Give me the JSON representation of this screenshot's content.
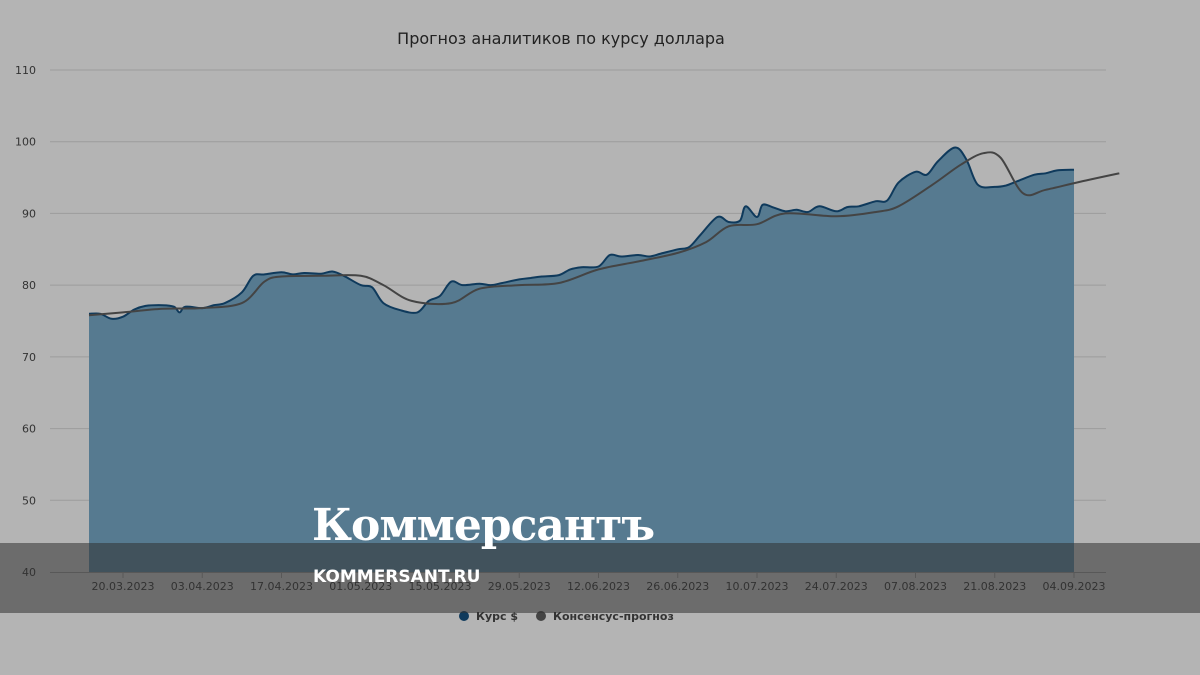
{
  "chart_data": {
    "type": "area",
    "title": "Прогноз аналитиков по курсу доллара",
    "ylim": [
      40,
      110
    ],
    "yticks": [
      40,
      50,
      60,
      70,
      80,
      90,
      100,
      110
    ],
    "grid": true,
    "legend_placement": "bottom-center",
    "xticks": [
      {
        "date": "2023-03-20",
        "label": "20.03.2023"
      },
      {
        "date": "2023-04-03",
        "label": "03.04.2023"
      },
      {
        "date": "2023-04-17",
        "label": "17.04.2023"
      },
      {
        "date": "2023-05-01",
        "label": "01.05.2023"
      },
      {
        "date": "2023-05-15",
        "label": "15.05.2023"
      },
      {
        "date": "2023-05-29",
        "label": "29.05.2023"
      },
      {
        "date": "2023-06-12",
        "label": "12.06.2023"
      },
      {
        "date": "2023-06-26",
        "label": "26.06.2023"
      },
      {
        "date": "2023-07-10",
        "label": "10.07.2023"
      },
      {
        "date": "2023-07-24",
        "label": "24.07.2023"
      },
      {
        "date": "2023-08-07",
        "label": "07.08.2023"
      },
      {
        "date": "2023-08-21",
        "label": "21.08.2023"
      },
      {
        "date": "2023-09-04",
        "label": "04.09.2023"
      }
    ],
    "series": [
      {
        "name": "Курс $",
        "type": "area",
        "color": "#567a90",
        "line_color": "#0f3a5c",
        "points": [
          [
            "2023-03-14",
            76.0
          ],
          [
            "2023-03-16",
            76.0
          ],
          [
            "2023-03-18",
            75.3
          ],
          [
            "2023-03-20",
            75.6
          ],
          [
            "2023-03-22",
            76.6
          ],
          [
            "2023-03-24",
            77.1
          ],
          [
            "2023-03-27",
            77.2
          ],
          [
            "2023-03-29",
            77.0
          ],
          [
            "2023-03-30",
            76.2
          ],
          [
            "2023-03-31",
            77.0
          ],
          [
            "2023-04-03",
            76.8
          ],
          [
            "2023-04-05",
            77.2
          ],
          [
            "2023-04-07",
            77.5
          ],
          [
            "2023-04-10",
            79.0
          ],
          [
            "2023-04-12",
            81.3
          ],
          [
            "2023-04-14",
            81.5
          ],
          [
            "2023-04-17",
            81.8
          ],
          [
            "2023-04-19",
            81.5
          ],
          [
            "2023-04-21",
            81.7
          ],
          [
            "2023-04-24",
            81.6
          ],
          [
            "2023-04-26",
            81.9
          ],
          [
            "2023-04-28",
            81.3
          ],
          [
            "2023-05-01",
            80.0
          ],
          [
            "2023-05-03",
            79.7
          ],
          [
            "2023-05-05",
            77.5
          ],
          [
            "2023-05-08",
            76.5
          ],
          [
            "2023-05-11",
            76.2
          ],
          [
            "2023-05-13",
            77.8
          ],
          [
            "2023-05-15",
            78.5
          ],
          [
            "2023-05-17",
            80.5
          ],
          [
            "2023-05-19",
            80.0
          ],
          [
            "2023-05-22",
            80.2
          ],
          [
            "2023-05-24",
            80.0
          ],
          [
            "2023-05-26",
            80.3
          ],
          [
            "2023-05-29",
            80.8
          ],
          [
            "2023-05-31",
            81.0
          ],
          [
            "2023-06-02",
            81.2
          ],
          [
            "2023-06-05",
            81.4
          ],
          [
            "2023-06-07",
            82.2
          ],
          [
            "2023-06-09",
            82.5
          ],
          [
            "2023-06-12",
            82.6
          ],
          [
            "2023-06-14",
            84.2
          ],
          [
            "2023-06-16",
            84.0
          ],
          [
            "2023-06-19",
            84.2
          ],
          [
            "2023-06-21",
            84.0
          ],
          [
            "2023-06-23",
            84.4
          ],
          [
            "2023-06-26",
            85.0
          ],
          [
            "2023-06-28",
            85.3
          ],
          [
            "2023-06-30",
            87.0
          ],
          [
            "2023-07-03",
            89.5
          ],
          [
            "2023-07-05",
            88.8
          ],
          [
            "2023-07-07",
            89.0
          ],
          [
            "2023-07-08",
            91.0
          ],
          [
            "2023-07-10",
            89.5
          ],
          [
            "2023-07-11",
            91.2
          ],
          [
            "2023-07-13",
            90.8
          ],
          [
            "2023-07-15",
            90.3
          ],
          [
            "2023-07-17",
            90.5
          ],
          [
            "2023-07-19",
            90.2
          ],
          [
            "2023-07-21",
            91.0
          ],
          [
            "2023-07-24",
            90.3
          ],
          [
            "2023-07-26",
            90.9
          ],
          [
            "2023-07-28",
            91.0
          ],
          [
            "2023-07-31",
            91.7
          ],
          [
            "2023-08-02",
            91.8
          ],
          [
            "2023-08-04",
            94.3
          ],
          [
            "2023-08-07",
            95.8
          ],
          [
            "2023-08-09",
            95.4
          ],
          [
            "2023-08-11",
            97.3
          ],
          [
            "2023-08-14",
            99.2
          ],
          [
            "2023-08-16",
            97.5
          ],
          [
            "2023-08-18",
            94.0
          ],
          [
            "2023-08-21",
            93.7
          ],
          [
            "2023-08-23",
            93.9
          ],
          [
            "2023-08-25",
            94.5
          ],
          [
            "2023-08-28",
            95.4
          ],
          [
            "2023-08-30",
            95.6
          ],
          [
            "2023-09-01",
            96.0
          ],
          [
            "2023-09-04",
            96.1
          ]
        ]
      },
      {
        "name": "Консенсус-прогноз",
        "type": "line",
        "color": "#444444",
        "points": [
          [
            "2023-03-14",
            75.8
          ],
          [
            "2023-03-20",
            76.2
          ],
          [
            "2023-03-27",
            76.7
          ],
          [
            "2023-04-03",
            76.8
          ],
          [
            "2023-04-10",
            77.5
          ],
          [
            "2023-04-14",
            80.5
          ],
          [
            "2023-04-17",
            81.2
          ],
          [
            "2023-04-24",
            81.3
          ],
          [
            "2023-05-01",
            81.3
          ],
          [
            "2023-05-05",
            80.0
          ],
          [
            "2023-05-10",
            77.8
          ],
          [
            "2023-05-17",
            77.5
          ],
          [
            "2023-05-22",
            79.5
          ],
          [
            "2023-05-29",
            80.0
          ],
          [
            "2023-06-05",
            80.3
          ],
          [
            "2023-06-12",
            82.2
          ],
          [
            "2023-06-19",
            83.3
          ],
          [
            "2023-06-26",
            84.5
          ],
          [
            "2023-07-01",
            86.0
          ],
          [
            "2023-07-05",
            88.2
          ],
          [
            "2023-07-10",
            88.5
          ],
          [
            "2023-07-15",
            90.0
          ],
          [
            "2023-07-24",
            89.6
          ],
          [
            "2023-07-31",
            90.2
          ],
          [
            "2023-08-04",
            91.0
          ],
          [
            "2023-08-10",
            94.0
          ],
          [
            "2023-08-15",
            96.8
          ],
          [
            "2023-08-19",
            98.4
          ],
          [
            "2023-08-22",
            97.8
          ],
          [
            "2023-08-26",
            92.8
          ],
          [
            "2023-08-30",
            93.3
          ],
          [
            "2023-09-05",
            94.4
          ],
          [
            "2023-09-12",
            95.6
          ]
        ]
      }
    ]
  },
  "watermark": {
    "logo_text": "Коммерсантъ",
    "url_text": "KOMMERSANT.RU"
  }
}
